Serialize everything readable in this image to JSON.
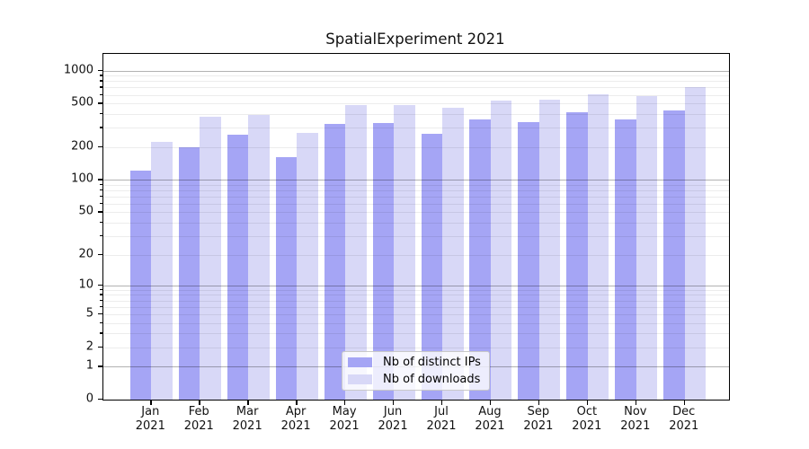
{
  "chart_data": {
    "type": "bar",
    "title": "SpatialExperiment 2021",
    "categories": [
      "Jan 2021",
      "Feb 2021",
      "Mar 2021",
      "Apr 2021",
      "May 2021",
      "Jun 2021",
      "Jul 2021",
      "Aug 2021",
      "Sep 2021",
      "Oct 2021",
      "Nov 2021",
      "Dec 2021"
    ],
    "series": [
      {
        "name": "Nb of distinct IPs",
        "color": "#a5a5f5",
        "values": [
          122,
          199,
          261,
          163,
          328,
          330,
          262,
          360,
          336,
          415,
          360,
          431
        ]
      },
      {
        "name": "Nb of downloads",
        "color": "#d8d8f7",
        "values": [
          224,
          376,
          390,
          268,
          480,
          485,
          460,
          528,
          538,
          606,
          580,
          700
        ]
      }
    ],
    "xlabel": "",
    "ylabel": "",
    "yscale": "log1p",
    "ylim": [
      0,
      1420
    ],
    "ytick_labels": [
      0,
      1,
      2,
      5,
      10,
      20,
      50,
      100,
      200,
      500,
      1000
    ],
    "grid_major": [
      1,
      10,
      100,
      1000
    ],
    "grid_minor": [
      2,
      3,
      4,
      5,
      6,
      7,
      8,
      9,
      20,
      30,
      40,
      50,
      60,
      70,
      80,
      90,
      200,
      300,
      400,
      500,
      600,
      700,
      800,
      900
    ],
    "grid": "on",
    "legend_position": "bottom-center",
    "background": "#ffffff"
  }
}
